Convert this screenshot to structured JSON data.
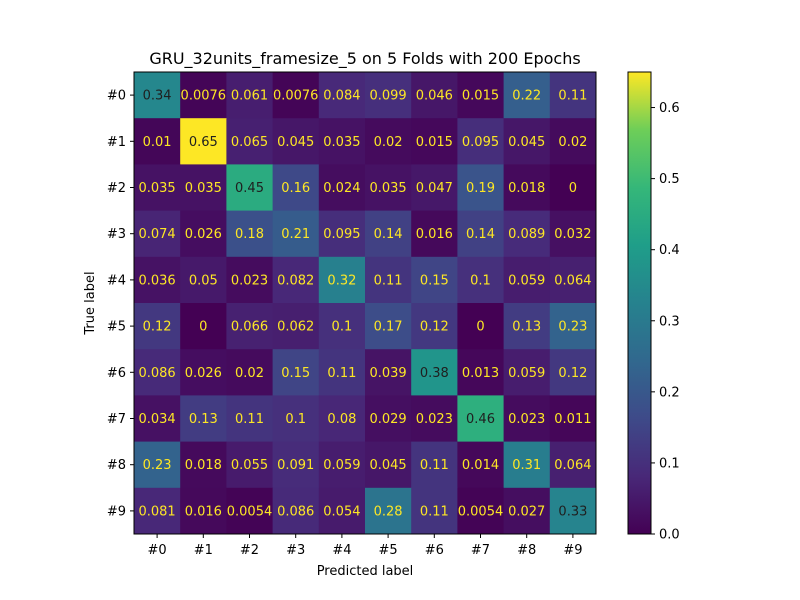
{
  "chart_data": {
    "type": "heatmap",
    "title": "GRU_32units_framesize_5 on 5 Folds with 200 Epochs",
    "xlabel": "Predicted label",
    "ylabel": "True label",
    "x_categories": [
      "#0",
      "#1",
      "#2",
      "#3",
      "#4",
      "#5",
      "#6",
      "#7",
      "#8",
      "#9"
    ],
    "y_categories": [
      "#0",
      "#1",
      "#2",
      "#3",
      "#4",
      "#5",
      "#6",
      "#7",
      "#8",
      "#9"
    ],
    "values": [
      [
        0.34,
        0.0076,
        0.061,
        0.0076,
        0.084,
        0.099,
        0.046,
        0.015,
        0.22,
        0.11
      ],
      [
        0.01,
        0.65,
        0.065,
        0.045,
        0.035,
        0.02,
        0.015,
        0.095,
        0.045,
        0.02
      ],
      [
        0.035,
        0.035,
        0.45,
        0.16,
        0.024,
        0.035,
        0.047,
        0.19,
        0.018,
        0
      ],
      [
        0.074,
        0.026,
        0.18,
        0.21,
        0.095,
        0.14,
        0.016,
        0.14,
        0.089,
        0.032
      ],
      [
        0.036,
        0.05,
        0.023,
        0.082,
        0.32,
        0.11,
        0.15,
        0.1,
        0.059,
        0.064
      ],
      [
        0.12,
        0,
        0.066,
        0.062,
        0.1,
        0.17,
        0.12,
        0,
        0.13,
        0.23
      ],
      [
        0.086,
        0.026,
        0.02,
        0.15,
        0.11,
        0.039,
        0.38,
        0.013,
        0.059,
        0.12
      ],
      [
        0.034,
        0.13,
        0.11,
        0.1,
        0.08,
        0.029,
        0.023,
        0.46,
        0.023,
        0.011
      ],
      [
        0.23,
        0.018,
        0.055,
        0.091,
        0.059,
        0.045,
        0.11,
        0.014,
        0.31,
        0.064
      ],
      [
        0.081,
        0.016,
        0.0054,
        0.086,
        0.054,
        0.28,
        0.11,
        0.0054,
        0.027,
        0.33
      ]
    ],
    "value_labels": [
      [
        "0.34",
        "0.0076",
        "0.061",
        "0.0076",
        "0.084",
        "0.099",
        "0.046",
        "0.015",
        "0.22",
        "0.11"
      ],
      [
        "0.01",
        "0.65",
        "0.065",
        "0.045",
        "0.035",
        "0.02",
        "0.015",
        "0.095",
        "0.045",
        "0.02"
      ],
      [
        "0.035",
        "0.035",
        "0.45",
        "0.16",
        "0.024",
        "0.035",
        "0.047",
        "0.19",
        "0.018",
        "0"
      ],
      [
        "0.074",
        "0.026",
        "0.18",
        "0.21",
        "0.095",
        "0.14",
        "0.016",
        "0.14",
        "0.089",
        "0.032"
      ],
      [
        "0.036",
        "0.05",
        "0.023",
        "0.082",
        "0.32",
        "0.11",
        "0.15",
        "0.1",
        "0.059",
        "0.064"
      ],
      [
        "0.12",
        "0",
        "0.066",
        "0.062",
        "0.1",
        "0.17",
        "0.12",
        "0",
        "0.13",
        "0.23"
      ],
      [
        "0.086",
        "0.026",
        "0.02",
        "0.15",
        "0.11",
        "0.039",
        "0.38",
        "0.013",
        "0.059",
        "0.12"
      ],
      [
        "0.034",
        "0.13",
        "0.11",
        "0.1",
        "0.08",
        "0.029",
        "0.023",
        "0.46",
        "0.023",
        "0.011"
      ],
      [
        "0.23",
        "0.018",
        "0.055",
        "0.091",
        "0.059",
        "0.045",
        "0.11",
        "0.014",
        "0.31",
        "0.064"
      ],
      [
        "0.081",
        "0.016",
        "0.0054",
        "0.086",
        "0.054",
        "0.28",
        "0.11",
        "0.0054",
        "0.027",
        "0.33"
      ]
    ],
    "colormap": "viridis",
    "colorbar": {
      "range": [
        0,
        0.65
      ],
      "ticks": [
        0.0,
        0.1,
        0.2,
        0.3,
        0.4,
        0.5,
        0.6
      ],
      "tick_labels": [
        "0.0",
        "0.1",
        "0.2",
        "0.3",
        "0.4",
        "0.5",
        "0.6"
      ]
    },
    "text_colors": {
      "light": "#fde725",
      "dark": "#1f1f1f"
    },
    "grid": false
  }
}
